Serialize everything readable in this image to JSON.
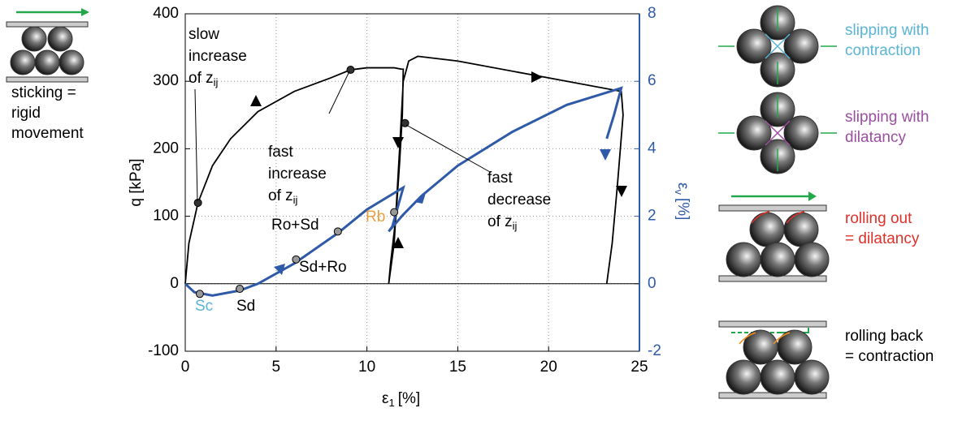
{
  "chart_data": {
    "type": "line",
    "x_label": {
      "symbol": "ε",
      "subscript": "1",
      "unit": "[%]"
    },
    "y_label": "q [kPa]",
    "y2_label": {
      "symbol": "ε",
      "subscript": "v",
      "unit": "[%]"
    },
    "xlim": [
      0,
      25
    ],
    "xticks": [
      0,
      5,
      10,
      15,
      20,
      25
    ],
    "ylim": [
      -100,
      400
    ],
    "yticks": [
      -100,
      0,
      100,
      200,
      300,
      400
    ],
    "y2lim": [
      -2,
      8
    ],
    "y2ticks": [
      -2,
      0,
      2,
      4,
      6,
      8
    ],
    "y2_color": "#2f5aa8",
    "grid": true,
    "series": [
      {
        "color": "#000000",
        "x": [
          0,
          0.2,
          0.7,
          1.5,
          2.5,
          4,
          6,
          8,
          9.1,
          10,
          11.5,
          11.9,
          12,
          11.95,
          11.8,
          11.6,
          11.3,
          11.2,
          11.5,
          11.8,
          12,
          12.3,
          12.8,
          15,
          20,
          24,
          24.1,
          23.8,
          23.5,
          23.2
        ],
        "values": [
          0,
          60,
          120,
          175,
          215,
          255,
          285,
          305,
          317,
          320,
          320,
          318,
          318,
          250,
          180,
          100,
          30,
          0,
          60,
          200,
          300,
          330,
          337,
          330,
          305,
          285,
          250,
          150,
          60,
          0
        ]
      },
      {
        "color": "#2f5aa8",
        "axis": "y2",
        "x": [
          0,
          0.5,
          1.5,
          3,
          4,
          6,
          8.4,
          10,
          12,
          11.4,
          11.2,
          11.6,
          12,
          13,
          15,
          18,
          21,
          24,
          23.6,
          23.2
        ],
        "values": [
          0,
          -0.25,
          -0.35,
          -0.2,
          0,
          0.6,
          1.5,
          2.2,
          2.85,
          1.7,
          1.55,
          1.8,
          2.05,
          2.6,
          3.5,
          4.5,
          5.3,
          5.8,
          5.0,
          4.3
        ]
      }
    ],
    "markers": [
      {
        "x": 0.7,
        "y": 120,
        "color": "#333333"
      },
      {
        "x": 9.1,
        "y": 317,
        "color": "#333333"
      },
      {
        "x": 12.1,
        "y": 238,
        "color": "#333333"
      },
      {
        "x": 0.8,
        "y": -0.3,
        "axis": "y2",
        "color": "#999999",
        "label": "Sc",
        "label_color": "#5ab4d6"
      },
      {
        "x": 3,
        "y": -0.15,
        "axis": "y2",
        "color": "#999999",
        "label": "Sd",
        "label_color": "#000000"
      },
      {
        "x": 6.1,
        "y": 0.72,
        "axis": "y2",
        "color": "#999999",
        "label": "Sd+Ro",
        "label_color": "#000000"
      },
      {
        "x": 8.4,
        "y": 1.55,
        "axis": "y2",
        "color": "#999999",
        "label": "Ro+Sd",
        "label_color": "#000000"
      },
      {
        "x": 11.5,
        "y": 2.12,
        "axis": "y2",
        "color": "#999999",
        "label": "Rb",
        "label_color": "#e8a040"
      }
    ],
    "annotations": [
      {
        "lines": [
          "slow",
          "increase",
          "of z"
        ],
        "subscript": "ij"
      },
      {
        "lines": [
          "fast",
          "increase",
          "of z"
        ],
        "subscript": "ij"
      },
      {
        "lines": [
          "fast",
          "decrease",
          "of z"
        ],
        "subscript": "ij"
      }
    ]
  },
  "side_panels": [
    {
      "lines": [
        "sticking =",
        "rigid",
        "movement"
      ],
      "color": "#000000"
    },
    {
      "lines": [
        "slipping with",
        "contraction"
      ],
      "color": "#5ab4d6"
    },
    {
      "lines": [
        "slipping with",
        "dilatancy"
      ],
      "color": "#9b4fa0"
    },
    {
      "lines": [
        "rolling out",
        "= dilatancy"
      ],
      "color": "#e0302a"
    },
    {
      "lines": [
        "rolling back",
        "= contraction"
      ],
      "color": "#000000"
    }
  ]
}
